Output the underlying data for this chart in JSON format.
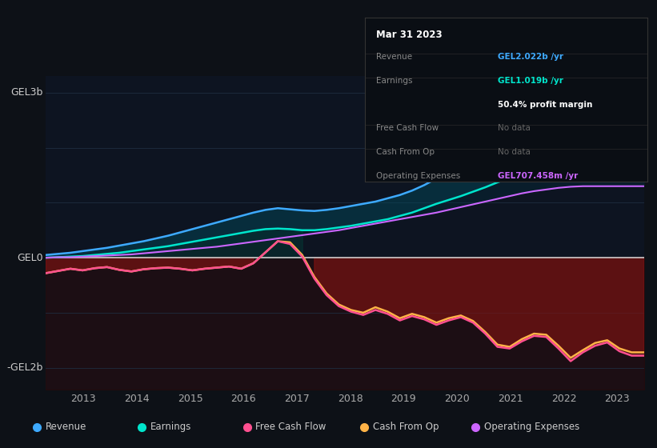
{
  "bg_color": "#0d1117",
  "plot_bg_color": "#0d1421",
  "grid_color": "#1e2d40",
  "x_min": 2012.3,
  "x_max": 2023.5,
  "y_min": -2.4,
  "y_max": 3.3,
  "x_ticks": [
    2013,
    2014,
    2015,
    2016,
    2017,
    2018,
    2019,
    2020,
    2021,
    2022,
    2023
  ],
  "ylabel_top": "GEL3b",
  "ylabel_zero": "GEL0",
  "ylabel_bottom": "-GEL2b",
  "tooltip": {
    "date": "Mar 31 2023",
    "revenue_label": "Revenue",
    "revenue_val": "GEL2.022b /yr",
    "earnings_label": "Earnings",
    "earnings_val": "GEL1.019b /yr",
    "margin_val": "50.4% profit margin",
    "fcf_label": "Free Cash Flow",
    "fcf_val": "No data",
    "cfo_label": "Cash From Op",
    "cfo_val": "No data",
    "opex_label": "Operating Expenses",
    "opex_val": "GEL707.458m /yr"
  },
  "rev_color": "#3eaaff",
  "earn_color": "#00e5cc",
  "opex_color": "#cc66ff",
  "fcf_color": "#ff5090",
  "cfo_color": "#ffb347",
  "legend": [
    {
      "label": "Revenue",
      "color": "#3eaaff"
    },
    {
      "label": "Earnings",
      "color": "#00e5cc"
    },
    {
      "label": "Free Cash Flow",
      "color": "#ff5090"
    },
    {
      "label": "Cash From Op",
      "color": "#ffb347"
    },
    {
      "label": "Operating Expenses",
      "color": "#cc66ff"
    }
  ]
}
